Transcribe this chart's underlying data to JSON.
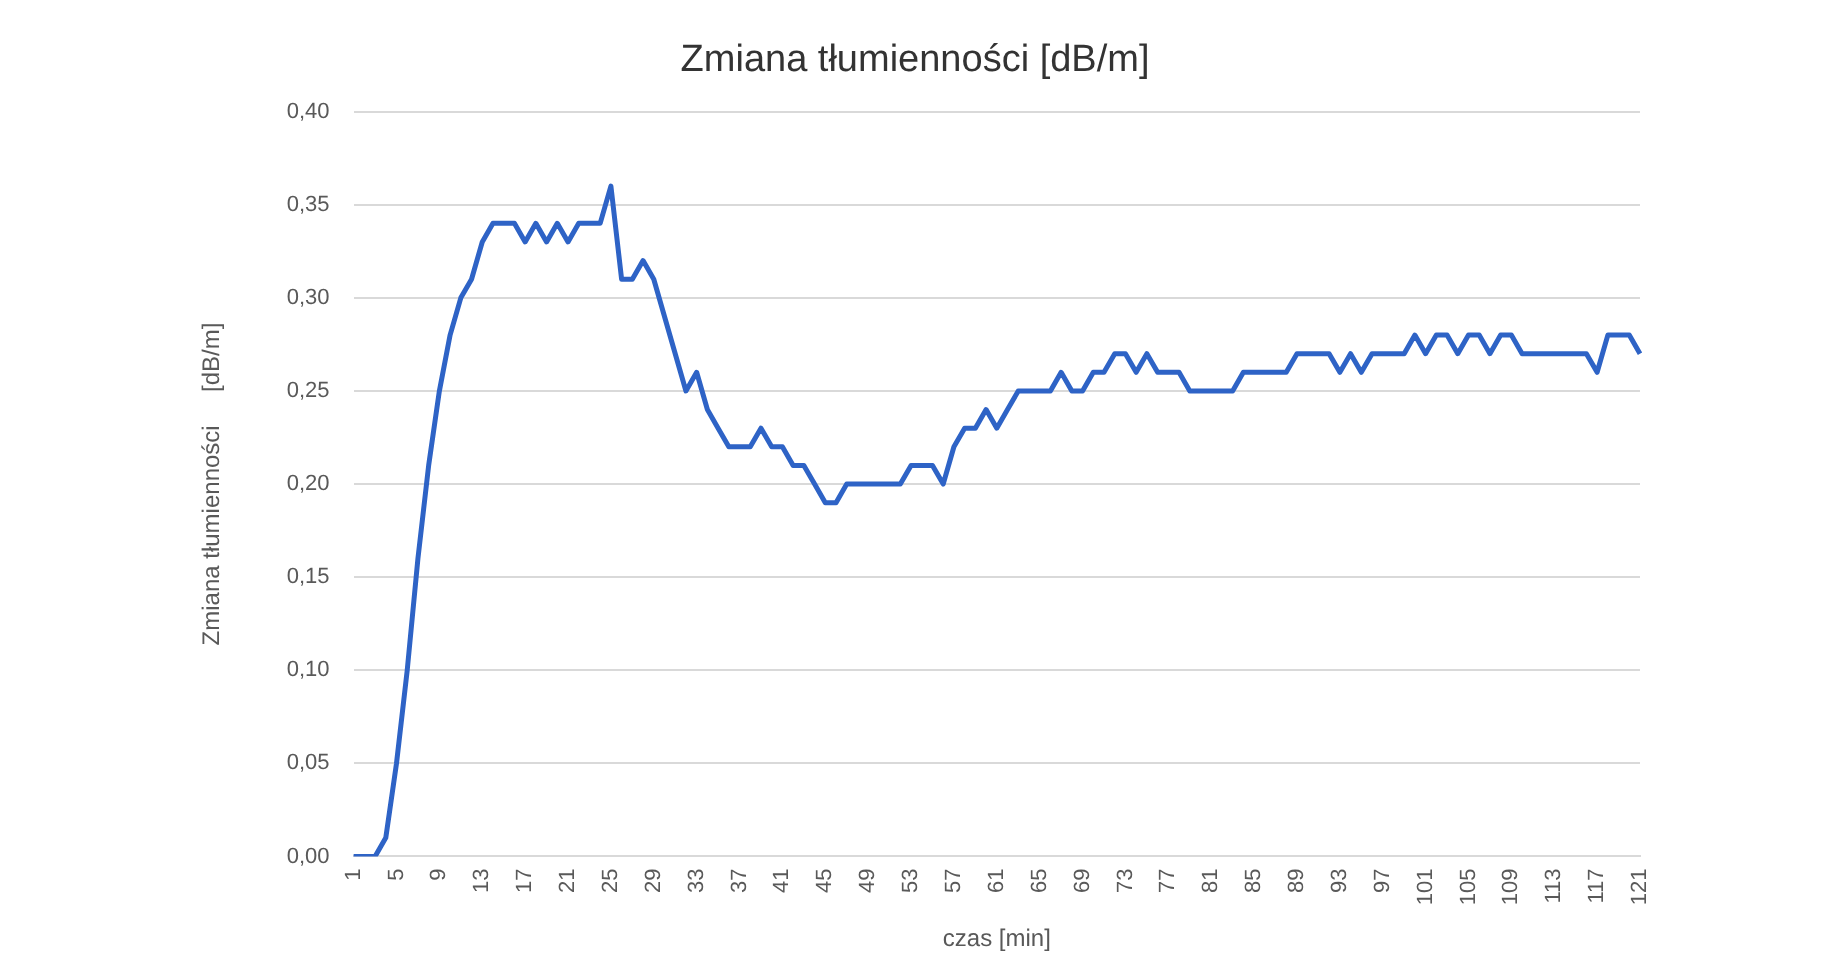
{
  "chart_data": {
    "type": "line",
    "title": "Zmiana tłumienności [dB/m]",
    "xlabel": "czas [min]",
    "ylabel": "Zmiana tłumienności     [dB/m]",
    "categories": [
      "1",
      null,
      null,
      null,
      "5",
      null,
      null,
      null,
      "9",
      null,
      null,
      null,
      "13",
      null,
      null,
      null,
      "17",
      null,
      null,
      null,
      "21",
      null,
      null,
      null,
      "25",
      null,
      null,
      null,
      "29",
      null,
      null,
      null,
      "33",
      null,
      null,
      null,
      "37",
      null,
      null,
      null,
      "41",
      null,
      null,
      null,
      "45",
      null,
      null,
      null,
      "49",
      null,
      null,
      null,
      "53",
      null,
      null,
      null,
      "57",
      null,
      null,
      null,
      "61",
      null,
      null,
      null,
      "65",
      null,
      null,
      null,
      "69",
      null,
      null,
      null,
      "73",
      null,
      null,
      null,
      "77",
      null,
      null,
      null,
      "81",
      null,
      null,
      null,
      "85",
      null,
      null,
      null,
      "89",
      null,
      null,
      null,
      "93",
      null,
      null,
      null,
      "97",
      null,
      null,
      null,
      "101",
      null,
      null,
      null,
      "105",
      null,
      null,
      null,
      "109",
      null,
      null,
      null,
      "113",
      null,
      null,
      null,
      "117",
      null,
      null,
      null,
      "121"
    ],
    "series": [
      {
        "color": "#2e63c6",
        "values": [
          0,
          0,
          0,
          0.01,
          0.05,
          0.1,
          0.16,
          0.21,
          0.25,
          0.28,
          0.3,
          0.31,
          0.33,
          0.34,
          0.34,
          0.34,
          0.33,
          0.34,
          0.33,
          0.34,
          0.33,
          0.34,
          0.34,
          0.34,
          0.36,
          0.31,
          0.31,
          0.32,
          0.31,
          0.29,
          0.27,
          0.25,
          0.26,
          0.24,
          0.23,
          0.22,
          0.22,
          0.22,
          0.23,
          0.22,
          0.22,
          0.21,
          0.21,
          0.2,
          0.19,
          0.19,
          0.2,
          0.2,
          0.2,
          0.2,
          0.2,
          0.2,
          0.21,
          0.21,
          0.21,
          0.2,
          0.22,
          0.23,
          0.23,
          0.24,
          0.23,
          0.24,
          0.25,
          0.25,
          0.25,
          0.25,
          0.26,
          0.25,
          0.25,
          0.26,
          0.26,
          0.27,
          0.27,
          0.26,
          0.27,
          0.26,
          0.26,
          0.26,
          0.25,
          0.25,
          0.25,
          0.25,
          0.25,
          0.26,
          0.26,
          0.26,
          0.26,
          0.26,
          0.27,
          0.27,
          0.27,
          0.27,
          0.26,
          0.27,
          0.26,
          0.27,
          0.27,
          0.27,
          0.27,
          0.28,
          0.27,
          0.28,
          0.28,
          0.27,
          0.28,
          0.28,
          0.27,
          0.28,
          0.28,
          0.27,
          0.27,
          0.27,
          0.27,
          0.27,
          0.27,
          0.27,
          0.26,
          0.28,
          0.28,
          0.28,
          0.27
        ]
      }
    ],
    "ylim": [
      0,
      0.4
    ],
    "yticks": [
      {
        "value": 0,
        "label": "0,00"
      },
      {
        "value": 0.05,
        "label": "0,05"
      },
      {
        "value": 0.1,
        "label": "0,10"
      },
      {
        "value": 0.15,
        "label": "0,15"
      },
      {
        "value": 0.2,
        "label": "0,20"
      },
      {
        "value": 0.25,
        "label": "0,25"
      },
      {
        "value": 0.3,
        "label": "0,30"
      },
      {
        "value": 0.35,
        "label": "0,35"
      },
      {
        "value": 0.4,
        "label": "0,40"
      }
    ],
    "grid": "y",
    "legend": false,
    "marker": "none",
    "line_style": "solid"
  }
}
